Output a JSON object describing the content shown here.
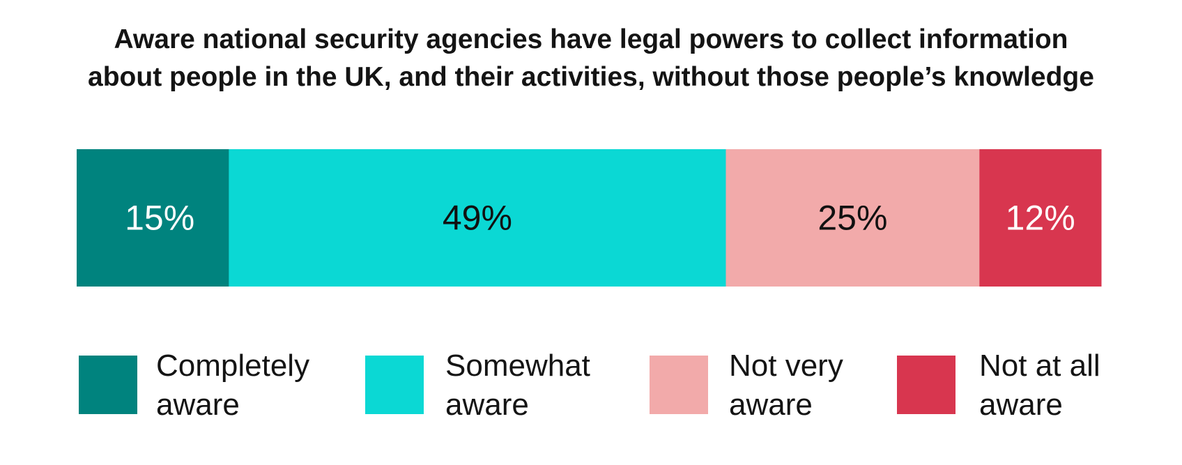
{
  "chart_data": {
    "type": "bar",
    "orientation": "horizontal-stacked",
    "title": "Aware national security agencies have legal powers to collect information about people in the UK, and their activities, without those people’s knowledge",
    "title_lines": [
      "Aware national security agencies have legal powers to collect information",
      "about people in the UK, and their activities, without those people’s knowledge"
    ],
    "categories": [
      "Completely aware",
      "Somewhat aware",
      "Not very aware",
      "Not at all aware"
    ],
    "values": [
      15,
      49,
      25,
      12
    ],
    "data_labels": [
      "15%",
      "49%",
      "25%",
      "12%"
    ],
    "legend": [
      {
        "label": "Completely\naware",
        "color": "#00837E"
      },
      {
        "label": "Somewhat\naware",
        "color": "#0BD8D4"
      },
      {
        "label": "Not very\naware",
        "color": "#F2AAAA"
      },
      {
        "label": "Not at all\naware",
        "color": "#D8364F"
      }
    ],
    "label_colors": [
      "#FFFFFF",
      "#111111",
      "#111111",
      "#FFFFFF"
    ],
    "legend_position": "bottom",
    "grid": false
  }
}
